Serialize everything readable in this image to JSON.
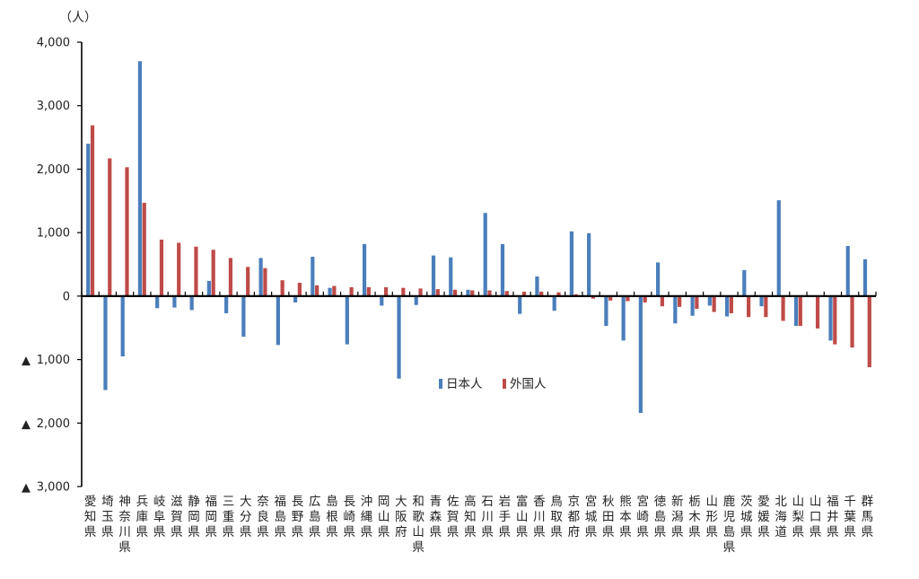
{
  "chart_data": {
    "type": "bar",
    "unit_label": "（人）",
    "negative_marker": "▲",
    "ylim": [
      -3000,
      4000
    ],
    "yticks": [
      4000,
      3000,
      2000,
      1000,
      0,
      -1000,
      -2000,
      -3000
    ],
    "ytick_labels": [
      "4,000",
      "3,000",
      "2,000",
      "1,000",
      "0",
      "1,000",
      "2,000",
      "3,000"
    ],
    "legend_position": "center",
    "grid": false,
    "categories": [
      "愛知県",
      "埼玉県",
      "神奈川県",
      "兵庫県",
      "岐阜県",
      "滋賀県",
      "静岡県",
      "福岡県",
      "三重県",
      "大分県",
      "奈良県",
      "福島県",
      "長野県",
      "広島県",
      "島根県",
      "長崎県",
      "沖縄県",
      "岡山県",
      "大阪府",
      "和歌山県",
      "青森県",
      "佐賀県",
      "高知県",
      "石川県",
      "岩手県",
      "富山県",
      "香川県",
      "鳥取県",
      "京都府",
      "宮城県",
      "秋田県",
      "熊本県",
      "宮崎県",
      "徳島県",
      "新潟県",
      "栃木県",
      "山形県",
      "鹿児島県",
      "茨城県",
      "愛媛県",
      "北海道",
      "山梨県",
      "山口県",
      "福井県",
      "千葉県",
      "群馬県"
    ],
    "series": [
      {
        "name": "日本人",
        "color": "#4a7ebb",
        "values": [
          2400,
          -1480,
          -950,
          3700,
          -190,
          -180,
          -220,
          240,
          -270,
          -640,
          600,
          -770,
          -100,
          620,
          130,
          -760,
          820,
          -150,
          -1300,
          -140,
          640,
          610,
          100,
          1310,
          820,
          -280,
          310,
          -230,
          1020,
          990,
          -470,
          -700,
          -1840,
          530,
          -430,
          -310,
          -150,
          -320,
          410,
          -160,
          1510,
          -470,
          0,
          -700,
          790,
          580
        ]
      },
      {
        "name": "外国人",
        "color": "#be4b48",
        "values": [
          2690,
          2170,
          2030,
          1470,
          890,
          840,
          780,
          730,
          600,
          460,
          440,
          250,
          210,
          170,
          160,
          140,
          140,
          140,
          130,
          120,
          110,
          100,
          90,
          90,
          80,
          70,
          70,
          60,
          30,
          -40,
          -70,
          -80,
          -100,
          -160,
          -170,
          -200,
          -250,
          -270,
          -330,
          -330,
          -390,
          -470,
          -510,
          -760,
          -810,
          -1120
        ]
      }
    ]
  }
}
